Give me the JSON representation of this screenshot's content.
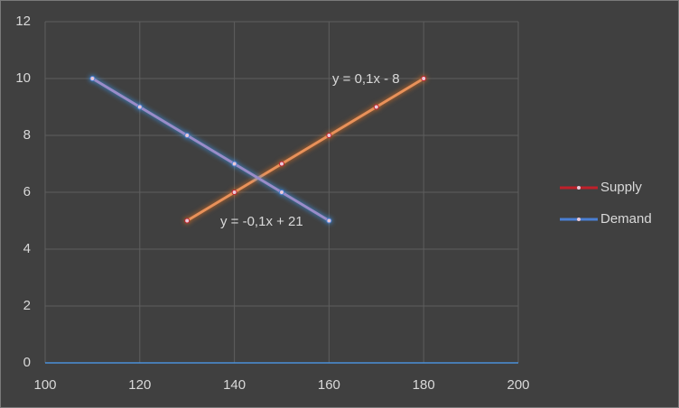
{
  "chart_data": {
    "type": "scatter",
    "series": [
      {
        "name": "Supply",
        "color": "#e8915a",
        "legend_color": "#c0202a",
        "x": [
          130,
          140,
          150,
          160,
          170,
          180
        ],
        "values": [
          5,
          6,
          7,
          8,
          9,
          10
        ]
      },
      {
        "name": "Demand",
        "color": "#9a8cc8",
        "legend_color": "#4a7fd4",
        "x": [
          110,
          120,
          130,
          140,
          150,
          160
        ],
        "values": [
          10,
          9,
          8,
          7,
          6,
          5
        ]
      }
    ],
    "annotations": [
      "y = 0,1x - 8",
      "y = -0,1x + 21"
    ],
    "xlim": [
      100,
      200
    ],
    "xticks": [
      100,
      120,
      140,
      160,
      180,
      200
    ],
    "ylim": [
      0,
      12
    ],
    "yticks": [
      0,
      2,
      4,
      6,
      8,
      10,
      12
    ],
    "grid": true,
    "legend": "right"
  }
}
